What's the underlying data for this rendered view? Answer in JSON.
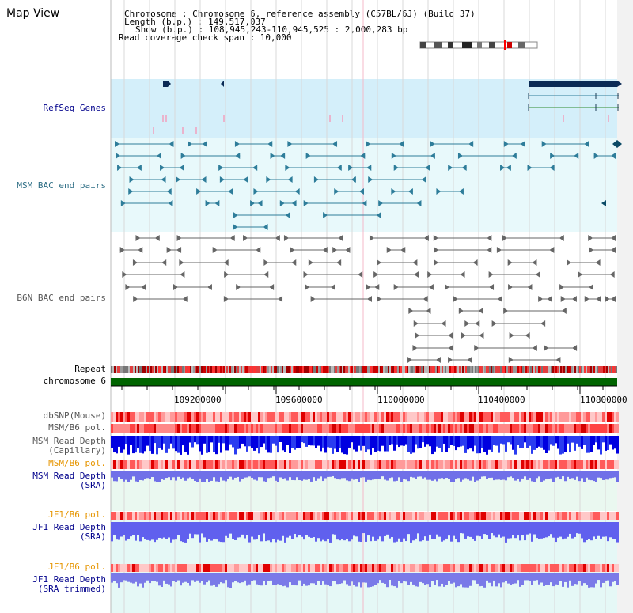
{
  "view_title": "Map View",
  "header": {
    "chromosome": "Chromosome    : Chromosome 6, reference assembly (C57BL/6J) (Build 37)",
    "length": "Length (b.p.) : 149,517,037",
    "show": "Show (b.p.) : 108,945,243-110,945,525 : 2,000,283 bp",
    "coverage": "Read coverage check span : 10,000"
  },
  "tracks": {
    "refseq": "RefSeq Genes",
    "msm_bac": "MSM BAC end pairs",
    "b6n_bac": "B6N BAC end pairs",
    "repeat": "Repeat",
    "chromosome": "chromosome 6",
    "dbsnp": "dbSNP(Mouse)",
    "msm_b6_pol": "MSM/B6 pol.",
    "msm_depth_cap_1": "MSM Read Depth",
    "msm_depth_cap_2": "(Capillary)",
    "msm_b6_pol_2": "MSM/B6 pol.",
    "msm_depth_sra_1": "MSM Read Depth",
    "msm_depth_sra_2": "(SRA)",
    "jf1_b6_pol": "JF1/B6 pol.",
    "jf1_depth_sra_1": "JF1 Read Depth",
    "jf1_depth_sra_2": "(SRA)",
    "jf1_b6_pol_2": "JF1/B6 pol.",
    "jf1_depth_trim_1": "JF1 Read Depth",
    "jf1_depth_trim_2": "(SRA trimmed)"
  },
  "axis_ticks": [
    "109200000",
    "109600000",
    "110000000",
    "110400000",
    "110800000"
  ],
  "colors": {
    "refseq_bg": "#d4effa",
    "msm_bg": "#e8f9fb",
    "depth_bg": "#eaf8f0",
    "chromosome_bar": "#006400",
    "navy": "#00008b",
    "teal": "#2f6f86",
    "orange": "#e69500",
    "grey": "#555555"
  }
}
